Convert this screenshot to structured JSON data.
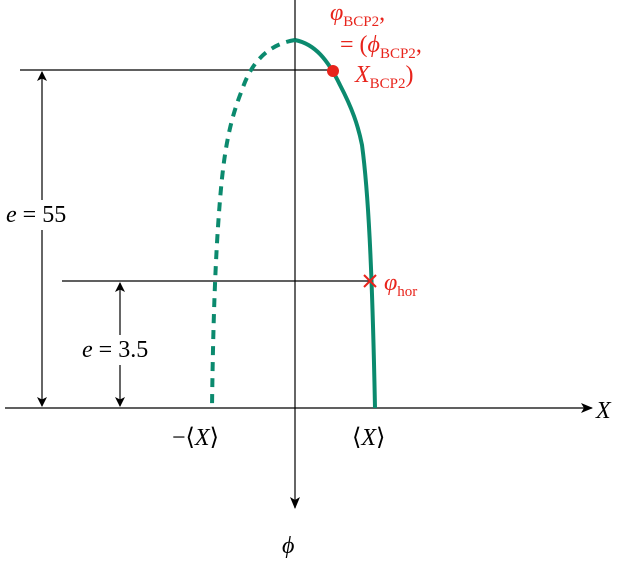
{
  "bcp_label": {
    "line1": {
      "symbol": "φ",
      "sub": "BCP2",
      "suffix": ","
    },
    "line2": {
      "prefix": "= (",
      "symbol": "ϕ",
      "sub": "BCP2",
      "suffix": ","
    },
    "line3": {
      "symbol": "X",
      "sub": "BCP2",
      "suffix": ")"
    }
  },
  "hor_label": {
    "symbol": "φ",
    "sub": "hor"
  },
  "e_large": {
    "symbol": "e",
    "rest": " = 55"
  },
  "e_small": {
    "symbol": "e",
    "rest": " = 3.5"
  },
  "x_axis_label": "X",
  "y_axis_label": "ϕ",
  "neg_mean": {
    "prefix": "−⟨",
    "symbol": "X",
    "suffix": "⟩"
  },
  "pos_mean": {
    "prefix": "⟨",
    "symbol": "X",
    "suffix": "⟩"
  }
}
